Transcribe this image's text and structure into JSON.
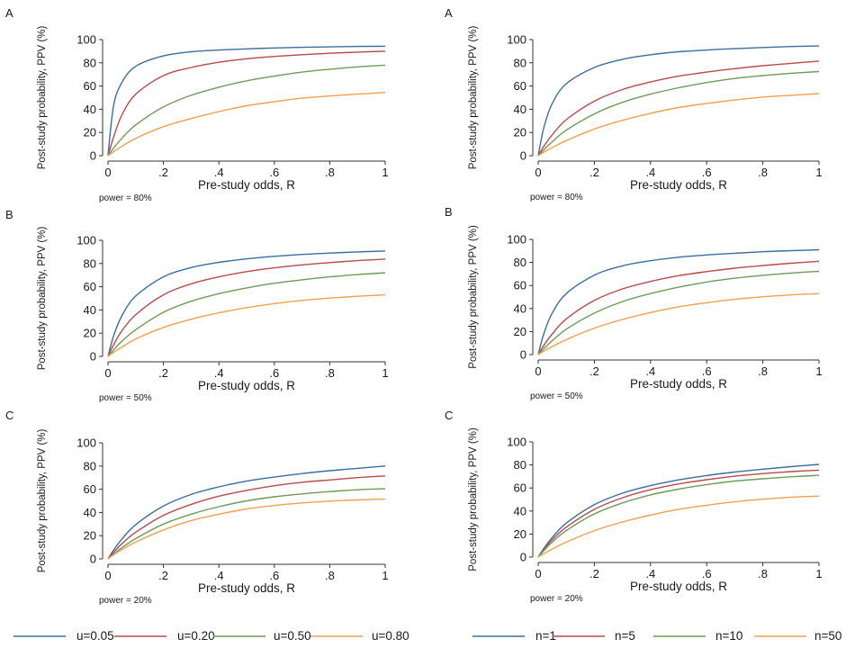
{
  "chart_data": [
    {
      "type": "line",
      "panel_letter": "A",
      "xlabel": "Pre-study odds, R",
      "ylabel": "Post-study probability, PPV (%)",
      "note": "power = 80%",
      "xlim": [
        0,
        1
      ],
      "ylim": [
        0,
        100
      ],
      "x_ticks": [
        "0",
        ".2",
        ".4",
        ".6",
        ".8",
        "1"
      ],
      "y_ticks": [
        "0",
        "20",
        "40",
        "60",
        "80",
        "100"
      ],
      "x": [
        0,
        0.02,
        0.05,
        0.1,
        0.2,
        0.3,
        0.4,
        0.5,
        0.6,
        0.7,
        0.8,
        0.9,
        1.0
      ],
      "series": [
        {
          "name": "u=0.05",
          "values": [
            0,
            43,
            63,
            77,
            86,
            89.5,
            91,
            92,
            92.8,
            93.3,
            93.7,
            94.1,
            94.3
          ]
        },
        {
          "name": "u=0.20",
          "values": [
            0,
            16,
            35,
            53,
            69,
            76,
            80.5,
            83.5,
            85.5,
            87,
            88.2,
            89.2,
            90
          ]
        },
        {
          "name": "u=0.50",
          "values": [
            0,
            6.5,
            15,
            26.5,
            42,
            52,
            59,
            64.5,
            68.5,
            72,
            74.5,
            76.5,
            78
          ]
        },
        {
          "name": "u=0.80",
          "values": [
            0,
            3.5,
            8,
            15,
            25,
            32,
            38,
            43,
            46.5,
            49.5,
            51.5,
            53,
            54.5
          ]
        }
      ]
    },
    {
      "type": "line",
      "panel_letter": "A",
      "xlabel": "Pre-study odds, R",
      "ylabel": "Post-study probability, PPV (%)",
      "note": "power = 80%",
      "xlim": [
        0,
        1
      ],
      "ylim": [
        0,
        100
      ],
      "x_ticks": [
        "0",
        ".2",
        ".4",
        ".6",
        ".8",
        "1"
      ],
      "y_ticks": [
        "0",
        "20",
        "40",
        "60",
        "80",
        "100"
      ],
      "x": [
        0,
        0.02,
        0.05,
        0.1,
        0.2,
        0.3,
        0.4,
        0.5,
        0.6,
        0.7,
        0.8,
        0.9,
        1.0
      ],
      "series": [
        {
          "name": "n=1",
          "values": [
            0,
            24,
            45,
            62,
            76,
            83,
            87,
            89.5,
            91,
            92.2,
            93.2,
            94,
            94.5
          ]
        },
        {
          "name": "n=5",
          "values": [
            0,
            8,
            18,
            31,
            47,
            57,
            63.5,
            68.5,
            72,
            75,
            77.5,
            79.5,
            81.5
          ]
        },
        {
          "name": "n=10",
          "values": [
            0,
            5,
            12,
            22,
            36,
            46,
            53,
            58.5,
            63,
            66.5,
            69,
            71,
            72.5
          ]
        },
        {
          "name": "n=50",
          "values": [
            0,
            3,
            7,
            13,
            23,
            30.5,
            36.5,
            41.5,
            45,
            48,
            50.5,
            52,
            53.5
          ]
        }
      ]
    },
    {
      "type": "line",
      "panel_letter": "B",
      "xlabel": "Pre-study odds, R",
      "ylabel": "Post-study probability, PPV (%)",
      "note": "power = 50%",
      "xlim": [
        0,
        1
      ],
      "ylim": [
        0,
        100
      ],
      "x_ticks": [
        "0",
        ".2",
        ".4",
        ".6",
        ".8",
        "1"
      ],
      "y_ticks": [
        "0",
        "20",
        "40",
        "60",
        "80",
        "100"
      ],
      "x": [
        0,
        0.02,
        0.05,
        0.1,
        0.2,
        0.3,
        0.4,
        0.5,
        0.6,
        0.7,
        0.8,
        0.9,
        1.0
      ],
      "series": [
        {
          "name": "u=0.05",
          "values": [
            0,
            17.5,
            35,
            52,
            68.5,
            76.5,
            81,
            84,
            86.2,
            87.8,
            89,
            90,
            90.8
          ]
        },
        {
          "name": "u=0.20",
          "values": [
            0,
            10,
            22,
            36,
            53,
            62.5,
            68.5,
            73,
            76.3,
            78.8,
            80.8,
            82.5,
            83.8
          ]
        },
        {
          "name": "u=0.50",
          "values": [
            0,
            5.5,
            13,
            23,
            38,
            47.5,
            54,
            59,
            63,
            66,
            68.5,
            70.5,
            72
          ]
        },
        {
          "name": "u=0.80",
          "values": [
            0,
            3.5,
            8,
            15,
            25,
            32,
            37.5,
            42,
            45.5,
            48.2,
            50.2,
            51.8,
            53
          ]
        }
      ]
    },
    {
      "type": "line",
      "panel_letter": "B",
      "xlabel": "Pre-study odds, R",
      "ylabel": "Post-study probability, PPV (%)",
      "note": "power = 50%",
      "xlim": [
        0,
        1
      ],
      "ylim": [
        0,
        100
      ],
      "x_ticks": [
        "0",
        ".2",
        ".4",
        ".6",
        ".8",
        "1"
      ],
      "y_ticks": [
        "0",
        "20",
        "40",
        "60",
        "80",
        "100"
      ],
      "x": [
        0,
        0.02,
        0.05,
        0.1,
        0.2,
        0.3,
        0.4,
        0.5,
        0.6,
        0.7,
        0.8,
        0.9,
        1.0
      ],
      "series": [
        {
          "name": "n=1",
          "values": [
            0,
            18,
            36,
            53,
            69,
            77,
            81.5,
            84.5,
            86.5,
            88,
            89.3,
            90.2,
            91
          ]
        },
        {
          "name": "n=5",
          "values": [
            0,
            8,
            18,
            31,
            47,
            57,
            63.5,
            68.5,
            72,
            75,
            77.3,
            79.3,
            81
          ]
        },
        {
          "name": "n=10",
          "values": [
            0,
            5,
            12,
            22,
            36,
            46,
            53,
            58.5,
            63,
            66.3,
            68.8,
            70.8,
            72.3
          ]
        },
        {
          "name": "n=50",
          "values": [
            0,
            3,
            7,
            13,
            23,
            30.5,
            36.5,
            41.5,
            45,
            48,
            50.2,
            51.8,
            53
          ]
        }
      ]
    },
    {
      "type": "line",
      "panel_letter": "C",
      "xlabel": "Pre-study odds, R",
      "ylabel": "Post-study probability, PPV (%)",
      "note": "power = 20%",
      "xlim": [
        0,
        1
      ],
      "ylim": [
        0,
        100
      ],
      "x_ticks": [
        "0",
        ".2",
        ".4",
        ".6",
        ".8",
        "1"
      ],
      "y_ticks": [
        "0",
        "20",
        "40",
        "60",
        "80",
        "100"
      ],
      "x": [
        0,
        0.02,
        0.05,
        0.1,
        0.2,
        0.3,
        0.4,
        0.5,
        0.6,
        0.7,
        0.8,
        0.9,
        1.0
      ],
      "series": [
        {
          "name": "u=0.05",
          "values": [
            0,
            7.5,
            17,
            29.5,
            45.5,
            55.5,
            62,
            67,
            70.5,
            73.5,
            76,
            78,
            80
          ]
        },
        {
          "name": "u=0.20",
          "values": [
            0,
            5.5,
            13,
            23,
            37.5,
            47,
            54,
            59,
            63,
            66,
            68,
            70,
            71.5
          ]
        },
        {
          "name": "u=0.50",
          "values": [
            0,
            4,
            9.5,
            17.5,
            30,
            38.5,
            45,
            50,
            53.5,
            56,
            58,
            59.5,
            60.5
          ]
        },
        {
          "name": "u=0.80",
          "values": [
            0,
            3.5,
            8,
            14.5,
            25,
            33,
            38.5,
            43,
            46,
            48.2,
            49.8,
            50.8,
            51.5
          ]
        }
      ]
    },
    {
      "type": "line",
      "panel_letter": "C",
      "xlabel": "Pre-study odds, R",
      "ylabel": "Post-study probability, PPV (%)",
      "note": "power = 20%",
      "xlim": [
        0,
        1
      ],
      "ylim": [
        0,
        100
      ],
      "x_ticks": [
        "0",
        ".2",
        ".4",
        ".6",
        ".8",
        "1"
      ],
      "y_ticks": [
        "0",
        "20",
        "40",
        "60",
        "80",
        "100"
      ],
      "x": [
        0,
        0.02,
        0.05,
        0.1,
        0.2,
        0.3,
        0.4,
        0.5,
        0.6,
        0.7,
        0.8,
        0.9,
        1.0
      ],
      "series": [
        {
          "name": "n=1",
          "values": [
            0,
            7.5,
            17,
            29.5,
            45.5,
            55.5,
            62,
            67,
            70.8,
            73.8,
            76.3,
            78.5,
            80.5
          ]
        },
        {
          "name": "n=5",
          "values": [
            0,
            6.5,
            15,
            26,
            41.5,
            51.5,
            58.5,
            63.5,
            67.2,
            70.2,
            72.5,
            74.2,
            75.5
          ]
        },
        {
          "name": "n=10",
          "values": [
            0,
            5.5,
            13,
            23,
            37.5,
            47,
            54,
            59,
            63,
            66,
            68,
            69.7,
            71
          ]
        },
        {
          "name": "n=50",
          "values": [
            0,
            3,
            7,
            13,
            23,
            30.5,
            36.5,
            41.5,
            45,
            48,
            50.3,
            52,
            53
          ]
        }
      ]
    }
  ],
  "legends": [
    {
      "entries": [
        {
          "label": "u=0.05",
          "color": "#3a6e9f"
        },
        {
          "label": "u=0.20",
          "color": "#b94a4d"
        },
        {
          "label": "u=0.50",
          "color": "#6e9b58"
        },
        {
          "label": "u=0.80",
          "color": "#f0a050"
        }
      ]
    },
    {
      "entries": [
        {
          "label": "n=1",
          "color": "#3a6e9f"
        },
        {
          "label": "n=5",
          "color": "#b94a4d"
        },
        {
          "label": "n=10",
          "color": "#6e9b58"
        },
        {
          "label": "n=50",
          "color": "#f0a050"
        }
      ]
    }
  ],
  "series_colors": [
    "#3a6e9f",
    "#b94a4d",
    "#6e9b58",
    "#f0a050"
  ]
}
